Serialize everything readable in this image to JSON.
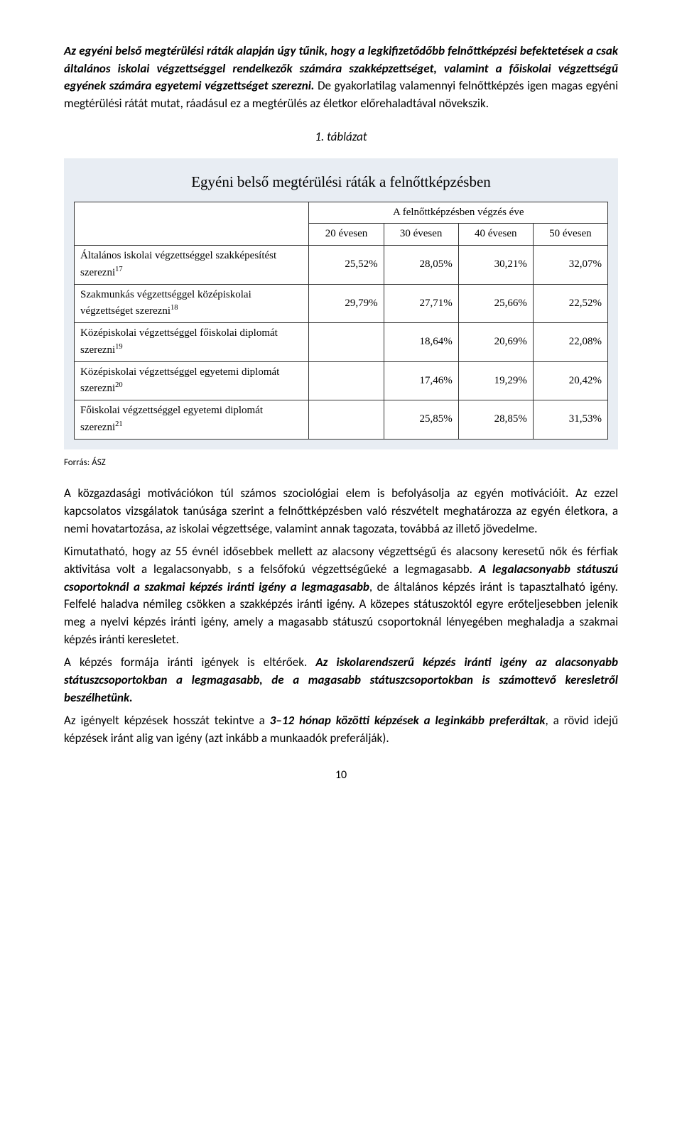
{
  "colors": {
    "page_bg": "#ffffff",
    "table_panel_bg": "#e8edf3",
    "table_bg": "#ffffff",
    "border": "#333333",
    "text": "#000000"
  },
  "typography": {
    "body_font": "Calibri, Arial, sans-serif",
    "body_size_pt": 12,
    "table_font": "Segoe Script / handwriting-style",
    "table_title_size_pt": 15,
    "line_height": 1.45
  },
  "intro": {
    "p1_runs": [
      {
        "t": "Az egyéni belső megtérülési ráták alapján úgy tűnik, hogy a legkifizetődőbb felnőttképzési befektetések a csak általános iskolai végzettséggel rendelkezők számára szakképzettséget, valamint a főiskolai végzettségű egyének számára egyetemi végzettséget szerezni.",
        "bold": true,
        "italic": true
      },
      {
        "t": " De gyakorlatilag valamennyi felnőttképzés igen magas egyéni megtérülési rátát mutat, ráadásul ez a megtérülés az életkor előrehaladtával növekszik.",
        "bold": false,
        "italic": false
      }
    ],
    "table_caption": "1. táblázat"
  },
  "table": {
    "type": "table",
    "title": "Egyéni belső megtérülési ráták a felnőttképzésben",
    "super_header": "A felnőttképzésben végzés éve",
    "first_col_width_pct": 44,
    "value_col_width_pct": 14,
    "columns": [
      "20 évesen",
      "30 évesen",
      "40 évesen",
      "50 évesen"
    ],
    "rows": [
      {
        "label": "Általános iskolai végzettséggel szakképesítést szerezni",
        "sup": "17",
        "vals": [
          "25,52%",
          "28,05%",
          "30,21%",
          "32,07%"
        ]
      },
      {
        "label": "Szakmunkás végzettséggel középiskolai végzettséget szerezni",
        "sup": "18",
        "vals": [
          "29,79%",
          "27,71%",
          "25,66%",
          "22,52%"
        ]
      },
      {
        "label": "Középiskolai végzettséggel főiskolai diplomát szerezni",
        "sup": "19",
        "vals": [
          "",
          "18,64%",
          "20,69%",
          "22,08%"
        ]
      },
      {
        "label": "Középiskolai végzettséggel egyetemi diplomát szerezni",
        "sup": "20",
        "vals": [
          "",
          "17,46%",
          "19,29%",
          "20,42%"
        ]
      },
      {
        "label": "Főiskolai végzettséggel egyetemi diplomát szerezni",
        "sup": "21",
        "vals": [
          "",
          "25,85%",
          "28,85%",
          "31,53%"
        ]
      }
    ]
  },
  "source": "Forrás: ÁSZ",
  "body": {
    "p2": "A közgazdasági motivációkon túl számos szociológiai elem is befolyásolja az egyén motivációit. Az ezzel kapcsolatos vizsgálatok tanúsága szerint a felnőttképzésben való részvételt meghatározza az egyén életkora, a nemi hovatartozása, az iskolai végzettsége, valamint annak tagozata, továbbá az illető jövedelme.",
    "p3_runs": [
      {
        "t": "Kimutatható, hogy az 55 évnél idősebbek mellett az alacsony végzettségű és alacsony keresetű nők és férfiak aktivitása volt a legalacsonyabb, s a felsőfokú végzettségűeké a legmagasabb. ",
        "bold": false,
        "italic": false
      },
      {
        "t": "A legalacsonyabb státuszú csoportoknál a szakmai képzés iránti igény a legmagasabb",
        "bold": true,
        "italic": true
      },
      {
        "t": ", de általános képzés iránt is tapasztalható igény. Felfelé haladva némileg csökken a szakképzés iránti igény. A közepes státuszoktól egyre erőteljesebben jelenik meg a nyelvi képzés iránti igény, amely a magasabb státuszú csoportoknál lényegében meghaladja a szakmai képzés iránti keresletet.",
        "bold": false,
        "italic": false
      }
    ],
    "p4_runs": [
      {
        "t": "A képzés formája iránti igények is eltérőek. ",
        "bold": false,
        "italic": false
      },
      {
        "t": "Az iskolarendszerű képzés iránti igény az alacsonyabb státuszcsoportokban a legmagasabb, de a magasabb státuszcsoportokban is számottevő keresletről beszélhetünk.",
        "bold": true,
        "italic": true
      }
    ],
    "p5_runs": [
      {
        "t": "Az igényelt képzések hosszát tekintve a ",
        "bold": false,
        "italic": false
      },
      {
        "t": "3–12 hónap közötti képzések a leginkább preferáltak",
        "bold": true,
        "italic": true
      },
      {
        "t": ", a rövid idejű képzések iránt alig van igény (azt inkább a munkaadók preferálják).",
        "bold": false,
        "italic": false
      }
    ]
  },
  "page_number": "10"
}
